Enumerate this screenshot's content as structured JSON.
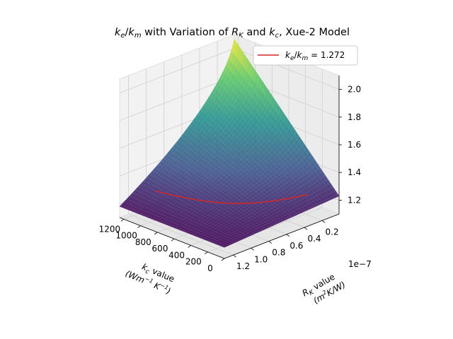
{
  "chart_data": {
    "type": "surface3d",
    "title": {
      "var_k": "k",
      "sub_e": "e",
      "slash": "/",
      "sub_m": "m",
      "mid": " with Variation of ",
      "var_R": "R",
      "sub_K": "K",
      "and": " and ",
      "var_k2": "k",
      "sub_c": "c",
      "tail": ", Xue-2 Model"
    },
    "xlabel": {
      "line1_var": "k",
      "line1_sub": "c",
      "line1_text": " value",
      "line2": "(Wm",
      "exp1": "−1",
      "mid": "K",
      "exp2": "−1",
      "close": ")"
    },
    "ylabel": {
      "line1_var": "R",
      "line1_sub": "K",
      "line1_text": " value",
      "line2_open": "(m",
      "line2_exp": "2",
      "line2_rest": "K/W)"
    },
    "y_offset_text": "1e−7",
    "x_ticks": [
      "1200",
      "1000",
      "800",
      "600",
      "400",
      "200",
      "0"
    ],
    "x_tick_values": [
      1200,
      1000,
      800,
      600,
      400,
      200,
      0
    ],
    "y_ticks": [
      "1.2",
      "1.0",
      "0.8",
      "0.6",
      "0.4",
      "0.2"
    ],
    "y_tick_values": [
      1.2,
      1.0,
      0.8,
      0.6,
      0.4,
      0.2
    ],
    "z_ticks": [
      "1.2",
      "1.4",
      "1.6",
      "1.8",
      "2.0"
    ],
    "z_tick_values": [
      1.2,
      1.4,
      1.6,
      1.8,
      2.0
    ],
    "xlim": [
      0,
      1250
    ],
    "ylim": [
      0.01,
      1.3
    ],
    "zlim": [
      1.1,
      2.1
    ],
    "colormap": [
      "#440154",
      "#3b528b",
      "#21918c",
      "#5ec962",
      "#fde725"
    ],
    "legend": {
      "var_k": "k",
      "sub_e": "e",
      "slash": "/",
      "sub_m": "m",
      "value": " = 1.272",
      "color": "#d62728",
      "position": "top-right"
    },
    "contour_level": 1.272,
    "grid": true
  }
}
